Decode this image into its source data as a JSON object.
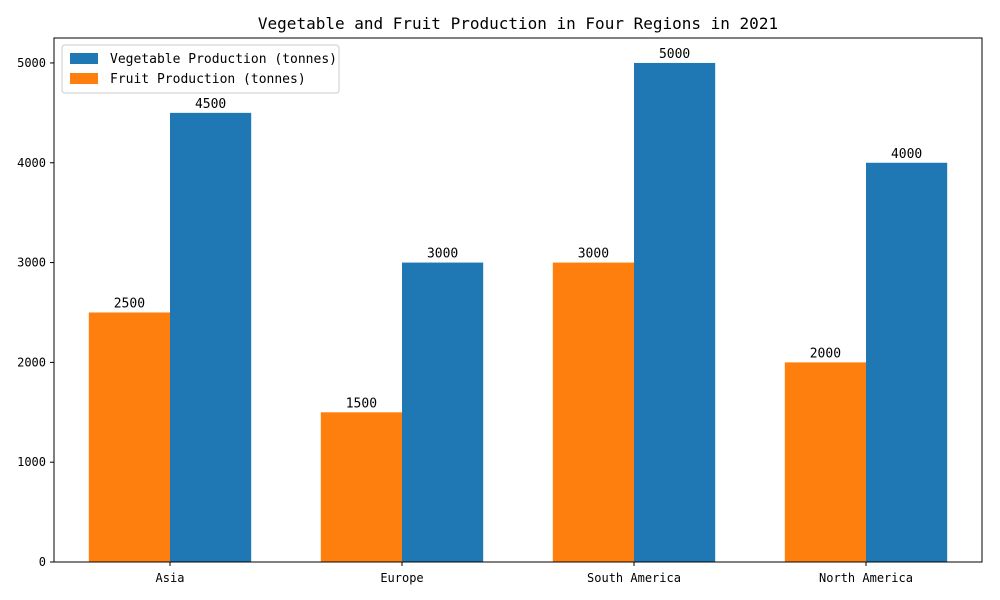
{
  "chart_data": {
    "type": "bar",
    "title": "Vegetable and Fruit Production in Four Regions in 2021",
    "xlabel": "",
    "ylabel": "",
    "categories": [
      "Asia",
      "Europe",
      "South America",
      "North America"
    ],
    "series": [
      {
        "name": "Fruit Production (tonnes)",
        "values": [
          2500,
          1500,
          3000,
          2000
        ],
        "color": "#ff7f0e"
      },
      {
        "name": "Vegetable Production (tonnes)",
        "values": [
          4500,
          3000,
          5000,
          4000
        ],
        "color": "#1f77b4"
      }
    ],
    "legend_order": [
      1,
      0
    ],
    "legend_position": "top-left",
    "ylim": [
      0,
      5250
    ],
    "yticks": [
      0,
      1000,
      2000,
      3000,
      4000,
      5000
    ],
    "grid": false
  }
}
